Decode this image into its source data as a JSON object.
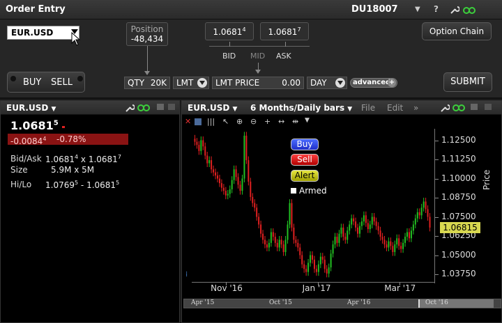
{
  "order_entry": {
    "title": "Order Entry",
    "account": "DU18007",
    "help": "?",
    "symbol": "EUR.USD",
    "position_label": "Position",
    "position_value": "-48,434",
    "bid_price": "1.0681",
    "bid_sup": "4",
    "ask_price": "1.0681",
    "ask_sup": "7",
    "bid_label": "BID",
    "mid_label": "MID",
    "ask_label": "ASK",
    "option_chain": "Option Chain",
    "buy": "BUY",
    "sell": "SELL",
    "qty_label": "QTY",
    "qty_value": "20K",
    "order_type": "LMT",
    "lmt_price_label": "LMT PRICE",
    "lmt_price_value": "0.00",
    "tif": "DAY",
    "advanced": "advanced",
    "submit": "SUBMIT"
  },
  "quote": {
    "symbol": "EUR.USD",
    "last_main": "1.0681",
    "last_sup": "5",
    "change": "-0.0084",
    "change_sup": "4",
    "change_pct": "-0.78%",
    "bidask_label": "Bid/Ask",
    "bidask_value_a": "1.0681",
    "bidask_sup_a": "4",
    "bidask_sep": " x ",
    "bidask_value_b": "1.0681",
    "bidask_sup_b": "7",
    "size_label": "Size",
    "size_value": "5.9M x 5M",
    "hilo_label": "Hi/Lo",
    "hilo_a": "1.0769",
    "hilo_sup_a": "5",
    "hilo_sep": " - ",
    "hilo_b": "1.0681",
    "hilo_sup_b": "5"
  },
  "chart": {
    "symbol": "EUR.USD",
    "period": "6 Months/Daily bars",
    "menu_file": "File",
    "menu_edit": "Edit",
    "more": "»",
    "buy": "Buy",
    "sell": "Sell",
    "alert": "Alert",
    "armed": "Armed",
    "y_label": "Price",
    "last_price": "1.06815",
    "nav_labels": [
      "Apr '15",
      "Oct '15",
      "Apr '16",
      "Oct '16"
    ],
    "colors": {
      "up": "#22c022",
      "down": "#e02020",
      "last_box": "#d8d850"
    }
  },
  "chart_data": {
    "type": "candlestick",
    "ylabel": "Price",
    "y_ticks": [
      "1.12500",
      "1.11250",
      "1.10000",
      "1.08750",
      "1.07500",
      "1.06250",
      "1.05000",
      "1.03750"
    ],
    "ylim": [
      1.0325,
      1.1325
    ],
    "x_ticks": [
      "Nov '16",
      "Jan '17",
      "Mar '17"
    ],
    "close": [
      1.124,
      1.122,
      1.118,
      1.125,
      1.121,
      1.115,
      1.11,
      1.112,
      1.106,
      1.104,
      1.102,
      1.1,
      1.097,
      1.094,
      1.092,
      1.089,
      1.09,
      1.093,
      1.099,
      1.106,
      1.101,
      1.096,
      1.092,
      1.1,
      1.128,
      1.112,
      1.098,
      1.088,
      1.084,
      1.081,
      1.075,
      1.07,
      1.064,
      1.06,
      1.057,
      1.055,
      1.058,
      1.065,
      1.062,
      1.058,
      1.055,
      1.06,
      1.057,
      1.052,
      1.06,
      1.07,
      1.084,
      1.068,
      1.06,
      1.058,
      1.055,
      1.05,
      1.044,
      1.041,
      1.039,
      1.045,
      1.05,
      1.047,
      1.041,
      1.039,
      1.044,
      1.049,
      1.047,
      1.041,
      1.038,
      1.042,
      1.051,
      1.057,
      1.062,
      1.058,
      1.064,
      1.068,
      1.062,
      1.06,
      1.066,
      1.07,
      1.074,
      1.072,
      1.068,
      1.064,
      1.069,
      1.072,
      1.076,
      1.071,
      1.067,
      1.07,
      1.075,
      1.072,
      1.069,
      1.066,
      1.062,
      1.06,
      1.057,
      1.055,
      1.059,
      1.056,
      1.052,
      1.057,
      1.061,
      1.056,
      1.054,
      1.058,
      1.062,
      1.065,
      1.061,
      1.066,
      1.07,
      1.074,
      1.078,
      1.076,
      1.081,
      1.085,
      1.08,
      1.075,
      1.068
    ]
  }
}
